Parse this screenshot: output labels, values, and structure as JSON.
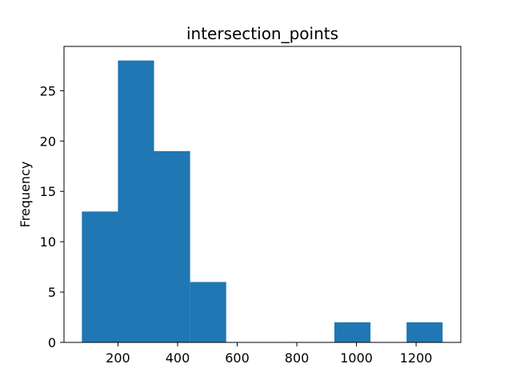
{
  "chart_data": {
    "type": "bar",
    "title": "intersection_points",
    "xlabel": "",
    "ylabel": "Frequency",
    "bins": [
      {
        "x0": 79,
        "x1": 200,
        "count": 13
      },
      {
        "x0": 200,
        "x1": 321,
        "count": 28
      },
      {
        "x0": 321,
        "x1": 442,
        "count": 19
      },
      {
        "x0": 442,
        "x1": 563,
        "count": 6
      },
      {
        "x0": 563,
        "x1": 684,
        "count": 0
      },
      {
        "x0": 684,
        "x1": 805,
        "count": 0
      },
      {
        "x0": 805,
        "x1": 926,
        "count": 0
      },
      {
        "x0": 926,
        "x1": 1047,
        "count": 2
      },
      {
        "x0": 1047,
        "x1": 1168,
        "count": 0
      },
      {
        "x0": 1168,
        "x1": 1289,
        "count": 2
      }
    ],
    "xlim": [
      19,
      1350
    ],
    "ylim": [
      0,
      29.4
    ],
    "xticks": [
      200,
      400,
      600,
      800,
      1000,
      1200
    ],
    "yticks": [
      0,
      5,
      10,
      15,
      20,
      25
    ],
    "bar_color": "#1f77b4",
    "grid": false,
    "legend": "none"
  }
}
